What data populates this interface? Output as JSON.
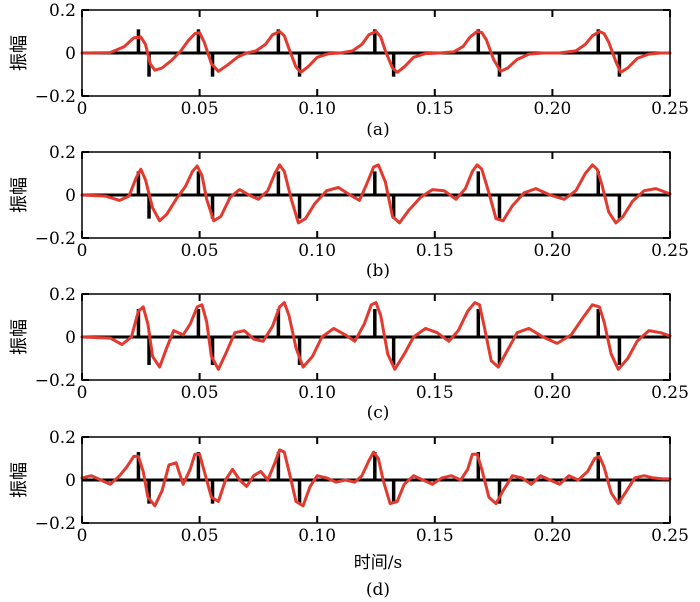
{
  "figure": {
    "xlabel": "时间/s"
  },
  "chart_data": [
    {
      "type": "line",
      "caption": "(a)",
      "ylabel": "振幅",
      "xlim": [
        0,
        0.25
      ],
      "ylim": [
        -0.2,
        0.2
      ],
      "xticks": [
        0,
        0.05,
        0.1,
        0.15,
        0.2,
        0.25
      ],
      "xtick_labels": [
        "0",
        "0.05",
        "0.10",
        "0.15",
        "0.20",
        "0.25"
      ],
      "yticks": [
        -0.2,
        0,
        0.2
      ],
      "ytick_labels": [
        "−0.2",
        "0",
        "0.2"
      ],
      "series": [
        {
          "kind": "spikes",
          "color": "#000000",
          "x": [
            0.024,
            0.0285,
            0.0495,
            0.0555,
            0.0835,
            0.0925,
            0.1245,
            0.1325,
            0.1685,
            0.1775,
            0.2195,
            0.2285
          ],
          "y": [
            0.11,
            -0.11,
            0.11,
            -0.11,
            0.11,
            -0.11,
            0.11,
            -0.11,
            0.11,
            -0.11,
            0.11,
            -0.11
          ]
        },
        {
          "kind": "curve",
          "color": "#e23a2e",
          "x": [
            0,
            0.012,
            0.018,
            0.022,
            0.025,
            0.027,
            0.029,
            0.031,
            0.034,
            0.038,
            0.042,
            0.045,
            0.048,
            0.05,
            0.052,
            0.055,
            0.058,
            0.062,
            0.066,
            0.07,
            0.074,
            0.078,
            0.081,
            0.084,
            0.086,
            0.088,
            0.091,
            0.093,
            0.096,
            0.1,
            0.105,
            0.11,
            0.115,
            0.119,
            0.122,
            0.125,
            0.127,
            0.129,
            0.132,
            0.134,
            0.137,
            0.141,
            0.146,
            0.152,
            0.158,
            0.162,
            0.165,
            0.168,
            0.17,
            0.172,
            0.175,
            0.178,
            0.181,
            0.185,
            0.19,
            0.196,
            0.203,
            0.21,
            0.214,
            0.217,
            0.22,
            0.222,
            0.224,
            0.227,
            0.229,
            0.232,
            0.236,
            0.241,
            0.246,
            0.25
          ],
          "y": [
            0,
            0.002,
            0.03,
            0.07,
            0.075,
            0.04,
            -0.05,
            -0.08,
            -0.07,
            -0.035,
            0.01,
            0.055,
            0.09,
            0.095,
            0.05,
            -0.05,
            -0.085,
            -0.055,
            -0.02,
            0.0,
            0.01,
            0.04,
            0.085,
            0.1,
            0.08,
            0.02,
            -0.065,
            -0.09,
            -0.065,
            -0.02,
            -0.003,
            0.0,
            0.01,
            0.04,
            0.085,
            0.1,
            0.075,
            0.01,
            -0.07,
            -0.09,
            -0.065,
            -0.02,
            -0.003,
            0.0,
            0.005,
            0.03,
            0.075,
            0.1,
            0.095,
            0.06,
            -0.03,
            -0.085,
            -0.07,
            -0.03,
            -0.005,
            0.0,
            0.0,
            0.01,
            0.04,
            0.08,
            0.1,
            0.09,
            0.05,
            -0.04,
            -0.09,
            -0.07,
            -0.025,
            -0.005,
            0.0,
            0.0
          ]
        }
      ]
    },
    {
      "type": "line",
      "caption": "(b)",
      "ylabel": "振幅",
      "xlim": [
        0,
        0.25
      ],
      "ylim": [
        -0.2,
        0.2
      ],
      "xticks": [
        0,
        0.05,
        0.1,
        0.15,
        0.2,
        0.25
      ],
      "xtick_labels": [
        "0",
        "0.05",
        "0.10",
        "0.15",
        "0.20",
        "0.25"
      ],
      "yticks": [
        -0.2,
        0,
        0.2
      ],
      "ytick_labels": [
        "−0.2",
        "0",
        "0.2"
      ],
      "series": [
        {
          "kind": "spikes",
          "color": "#000000",
          "x": [
            0.024,
            0.0285,
            0.0495,
            0.0555,
            0.0835,
            0.0925,
            0.1245,
            0.1325,
            0.1685,
            0.1775,
            0.2195,
            0.2285
          ],
          "y": [
            0.11,
            -0.11,
            0.11,
            -0.11,
            0.11,
            -0.11,
            0.11,
            -0.11,
            0.11,
            -0.11,
            0.11,
            -0.11
          ]
        },
        {
          "kind": "curve",
          "color": "#e23a2e",
          "x": [
            0,
            0.01,
            0.016,
            0.02,
            0.023,
            0.025,
            0.027,
            0.03,
            0.033,
            0.036,
            0.04,
            0.044,
            0.047,
            0.049,
            0.051,
            0.053,
            0.056,
            0.059,
            0.063,
            0.067,
            0.071,
            0.075,
            0.079,
            0.082,
            0.084,
            0.086,
            0.089,
            0.092,
            0.095,
            0.099,
            0.104,
            0.109,
            0.114,
            0.118,
            0.121,
            0.124,
            0.126,
            0.129,
            0.132,
            0.135,
            0.139,
            0.144,
            0.149,
            0.154,
            0.159,
            0.163,
            0.166,
            0.168,
            0.17,
            0.173,
            0.176,
            0.179,
            0.183,
            0.188,
            0.193,
            0.199,
            0.205,
            0.21,
            0.214,
            0.217,
            0.219,
            0.221,
            0.224,
            0.227,
            0.23,
            0.234,
            0.239,
            0.244,
            0.25
          ],
          "y": [
            0,
            -0.005,
            -0.025,
            -0.005,
            0.08,
            0.12,
            0.07,
            -0.06,
            -0.12,
            -0.09,
            -0.02,
            0.04,
            0.11,
            0.135,
            0.09,
            -0.02,
            -0.12,
            -0.1,
            -0.01,
            0.025,
            0.0,
            -0.02,
            0.02,
            0.1,
            0.14,
            0.11,
            -0.02,
            -0.13,
            -0.11,
            -0.04,
            0.02,
            0.035,
            0.0,
            -0.025,
            0.05,
            0.13,
            0.14,
            0.06,
            -0.1,
            -0.13,
            -0.07,
            -0.01,
            0.025,
            0.02,
            -0.02,
            0.03,
            0.11,
            0.14,
            0.12,
            0.01,
            -0.11,
            -0.12,
            -0.05,
            0.01,
            0.03,
            0.0,
            -0.02,
            0.02,
            0.1,
            0.14,
            0.12,
            0.05,
            -0.08,
            -0.13,
            -0.1,
            -0.03,
            0.02,
            0.03,
            0.005
          ]
        }
      ]
    },
    {
      "type": "line",
      "caption": "(c)",
      "ylabel": "振幅",
      "xlim": [
        0,
        0.25
      ],
      "ylim": [
        -0.2,
        0.2
      ],
      "xticks": [
        0,
        0.05,
        0.1,
        0.15,
        0.2,
        0.25
      ],
      "xtick_labels": [
        "0",
        "0.05",
        "0.10",
        "0.15",
        "0.20",
        "0.25"
      ],
      "yticks": [
        -0.2,
        0,
        0.2
      ],
      "ytick_labels": [
        "−0.2",
        "0",
        "0.2"
      ],
      "series": [
        {
          "kind": "spikes",
          "color": "#000000",
          "x": [
            0.024,
            0.0285,
            0.0495,
            0.0555,
            0.0835,
            0.0925,
            0.1245,
            0.1325,
            0.1685,
            0.1775,
            0.2195,
            0.2285
          ],
          "y": [
            0.13,
            -0.13,
            0.13,
            -0.13,
            0.13,
            -0.13,
            0.13,
            -0.13,
            0.13,
            -0.13,
            0.13,
            -0.13
          ]
        },
        {
          "kind": "curve",
          "color": "#e23a2e",
          "x": [
            0,
            0.012,
            0.017,
            0.021,
            0.024,
            0.026,
            0.028,
            0.03,
            0.033,
            0.036,
            0.039,
            0.043,
            0.046,
            0.049,
            0.051,
            0.053,
            0.055,
            0.058,
            0.061,
            0.065,
            0.069,
            0.073,
            0.077,
            0.081,
            0.084,
            0.086,
            0.088,
            0.091,
            0.094,
            0.098,
            0.102,
            0.107,
            0.112,
            0.116,
            0.12,
            0.123,
            0.125,
            0.127,
            0.13,
            0.133,
            0.137,
            0.141,
            0.146,
            0.151,
            0.156,
            0.16,
            0.164,
            0.167,
            0.169,
            0.171,
            0.174,
            0.177,
            0.181,
            0.185,
            0.19,
            0.196,
            0.202,
            0.208,
            0.213,
            0.217,
            0.22,
            0.222,
            0.225,
            0.228,
            0.232,
            0.236,
            0.241,
            0.246,
            0.25
          ],
          "y": [
            0,
            -0.005,
            -0.035,
            0.0,
            0.12,
            0.14,
            0.06,
            -0.09,
            -0.14,
            -0.05,
            0.03,
            0.01,
            0.06,
            0.14,
            0.15,
            0.07,
            -0.09,
            -0.15,
            -0.08,
            0.02,
            0.03,
            -0.01,
            -0.02,
            0.05,
            0.14,
            0.16,
            0.1,
            -0.05,
            -0.14,
            -0.09,
            0.0,
            0.04,
            0.01,
            -0.02,
            0.06,
            0.15,
            0.16,
            0.1,
            -0.08,
            -0.15,
            -0.08,
            0.0,
            0.04,
            0.02,
            -0.02,
            0.03,
            0.12,
            0.16,
            0.15,
            0.05,
            -0.11,
            -0.14,
            -0.06,
            0.02,
            0.04,
            0.0,
            -0.03,
            0.01,
            0.09,
            0.15,
            0.14,
            0.07,
            -0.08,
            -0.15,
            -0.1,
            -0.02,
            0.03,
            0.02,
            0.005
          ]
        }
      ]
    },
    {
      "type": "line",
      "caption": "(d)",
      "ylabel": "振幅",
      "xlim": [
        0,
        0.25
      ],
      "ylim": [
        -0.2,
        0.2
      ],
      "xticks": [
        0,
        0.05,
        0.1,
        0.15,
        0.2,
        0.25
      ],
      "xtick_labels": [
        "0",
        "0.05",
        "0.10",
        "0.15",
        "0.20",
        "0.25"
      ],
      "yticks": [
        -0.2,
        0,
        0.2
      ],
      "ytick_labels": [
        "−0.2",
        "0",
        "0.2"
      ],
      "series": [
        {
          "kind": "spikes",
          "color": "#000000",
          "x": [
            0.024,
            0.0285,
            0.0495,
            0.0555,
            0.0835,
            0.0925,
            0.1245,
            0.1325,
            0.1685,
            0.1775,
            0.2195,
            0.2285
          ],
          "y": [
            0.13,
            -0.11,
            0.13,
            -0.11,
            0.13,
            -0.11,
            0.13,
            -0.11,
            0.13,
            -0.11,
            0.13,
            -0.11
          ]
        },
        {
          "kind": "curve",
          "color": "#e23a2e",
          "x": [
            0,
            0.004,
            0.008,
            0.012,
            0.016,
            0.019,
            0.022,
            0.024,
            0.026,
            0.028,
            0.031,
            0.034,
            0.037,
            0.04,
            0.043,
            0.046,
            0.048,
            0.05,
            0.052,
            0.055,
            0.058,
            0.061,
            0.064,
            0.067,
            0.07,
            0.073,
            0.076,
            0.079,
            0.082,
            0.084,
            0.086,
            0.088,
            0.091,
            0.094,
            0.097,
            0.1,
            0.104,
            0.108,
            0.112,
            0.116,
            0.119,
            0.122,
            0.124,
            0.126,
            0.128,
            0.131,
            0.134,
            0.137,
            0.141,
            0.145,
            0.149,
            0.153,
            0.157,
            0.161,
            0.164,
            0.166,
            0.168,
            0.17,
            0.173,
            0.176,
            0.179,
            0.183,
            0.187,
            0.191,
            0.195,
            0.199,
            0.203,
            0.207,
            0.211,
            0.215,
            0.218,
            0.22,
            0.222,
            0.225,
            0.228,
            0.231,
            0.235,
            0.239,
            0.243,
            0.247,
            0.25
          ],
          "y": [
            0.01,
            0.02,
            0.0,
            -0.02,
            0.02,
            0.06,
            0.11,
            0.11,
            0.04,
            -0.08,
            -0.12,
            -0.05,
            0.07,
            0.08,
            -0.02,
            0.05,
            0.12,
            0.12,
            0.04,
            -0.08,
            -0.1,
            0.0,
            0.05,
            0.0,
            -0.03,
            0.02,
            0.04,
            0.0,
            0.08,
            0.14,
            0.13,
            0.04,
            -0.1,
            -0.12,
            -0.03,
            0.02,
            0.01,
            -0.01,
            0.0,
            -0.01,
            0.02,
            0.09,
            0.13,
            0.1,
            0.0,
            -0.11,
            -0.1,
            -0.02,
            0.02,
            0.0,
            -0.02,
            0.01,
            0.02,
            0.0,
            0.05,
            0.12,
            0.12,
            0.05,
            -0.08,
            -0.11,
            -0.05,
            0.02,
            0.01,
            -0.02,
            0.02,
            0.0,
            -0.02,
            0.02,
            0.0,
            0.04,
            0.1,
            0.11,
            0.06,
            -0.06,
            -0.11,
            -0.06,
            0.01,
            0.02,
            0.01,
            0.005,
            0.005
          ]
        }
      ]
    }
  ]
}
